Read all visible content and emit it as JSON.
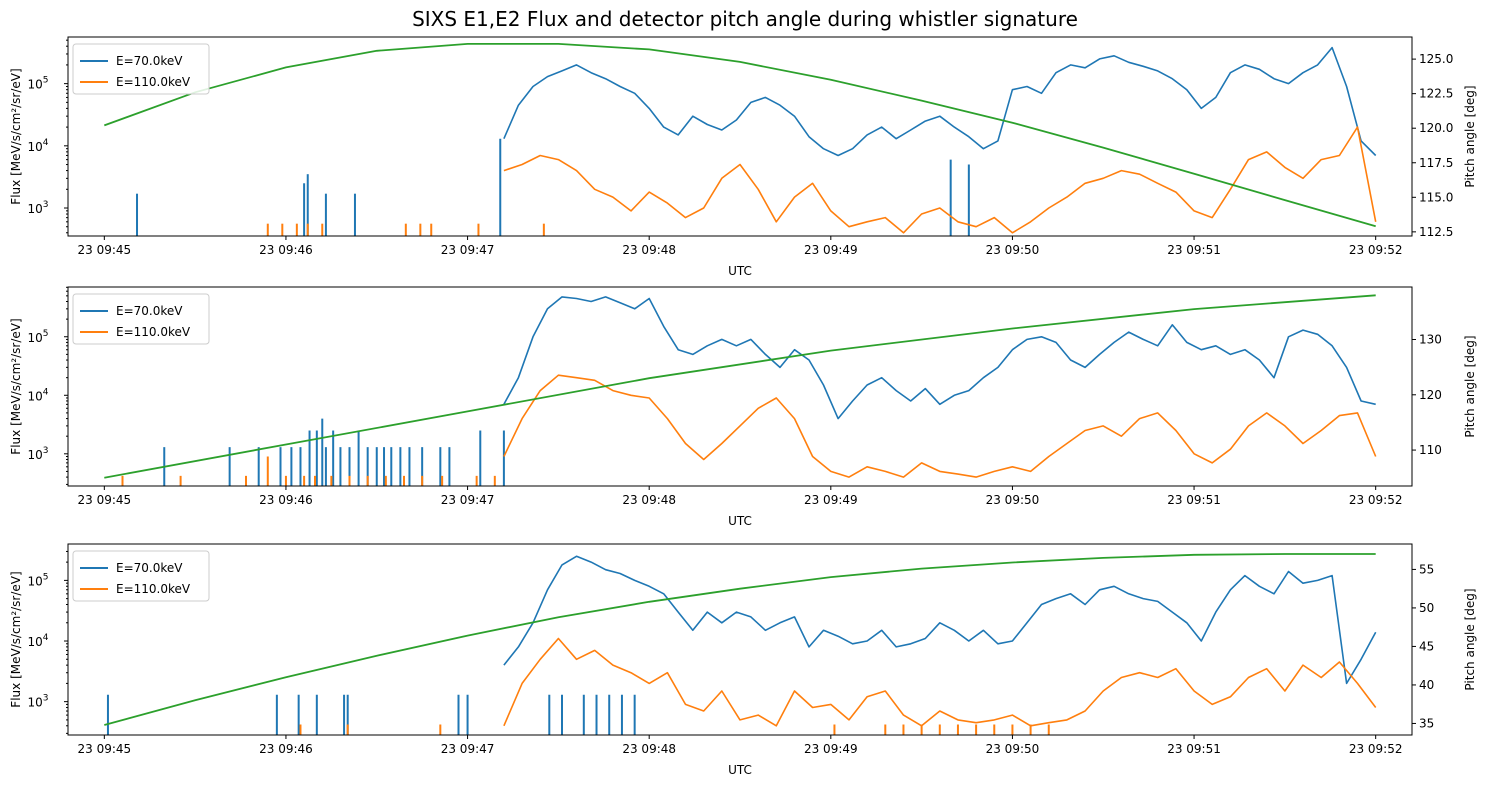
{
  "figure_title": "SIXS E1,E2 Flux and detector pitch angle during whistler signature",
  "colors": {
    "e70": "#1f77b4",
    "e110": "#ff7f0e",
    "pitch": "#2ca02c"
  },
  "chart_data": [
    {
      "type": "line",
      "panel": 1,
      "xlabel": "UTC",
      "ylabel": "Flux [MeV/s/cm²/sr/eV]",
      "ylabel_right": "Pitch angle [deg]",
      "yscale": "log",
      "x_ticks": [
        "23 09:45",
        "23 09:46",
        "23 09:47",
        "23 09:48",
        "23 09:49",
        "23 09:50",
        "23 09:51",
        "23 09:52"
      ],
      "y_tick_exponents": [
        3,
        4,
        5
      ],
      "y_right_ticks": [
        "112.5",
        "115.0",
        "117.5",
        "120.0",
        "122.5",
        "125.0"
      ],
      "xlim_min": [
        -0.2,
        7.2
      ],
      "ylim_log10": [
        2.55,
        5.75
      ],
      "y_right_lim": [
        112.2,
        126.6
      ],
      "legend": [
        "E=70.0keV",
        "E=110.0keV"
      ],
      "legend_loc": "upper left",
      "pitch_angle": {
        "t": [
          0,
          0.5,
          1,
          1.5,
          2,
          2.5,
          3,
          3.5,
          4,
          4.5,
          5,
          5.5,
          6,
          6.5,
          7
        ],
        "deg": [
          120.2,
          122.6,
          124.4,
          125.6,
          126.1,
          126.1,
          125.7,
          124.8,
          123.5,
          122.0,
          120.4,
          118.6,
          116.7,
          114.8,
          112.9
        ]
      },
      "series": [
        {
          "name": "E=70.0keV",
          "t": [
            2.2,
            2.28,
            2.36,
            2.44,
            2.52,
            2.6,
            2.68,
            2.76,
            2.84,
            2.92,
            3.0,
            3.08,
            3.16,
            3.24,
            3.32,
            3.4,
            3.48,
            3.56,
            3.64,
            3.72,
            3.8,
            3.88,
            3.96,
            4.04,
            4.12,
            4.2,
            4.28,
            4.36,
            4.44,
            4.52,
            4.6,
            4.68,
            4.76,
            4.84,
            4.92,
            5.0,
            5.08,
            5.16,
            5.24,
            5.32,
            5.4,
            5.48,
            5.56,
            5.64,
            5.72,
            5.8,
            5.88,
            5.96,
            6.04,
            6.12,
            6.2,
            6.28,
            6.36,
            6.44,
            6.52,
            6.6,
            6.68,
            6.76,
            6.84,
            6.92,
            7.0
          ],
          "flux": [
            13000,
            45000,
            90000,
            130000,
            160000,
            200000,
            150000,
            120000,
            90000,
            70000,
            40000,
            20000,
            15000,
            30000,
            22000,
            18000,
            26000,
            50000,
            60000,
            45000,
            30000,
            14000,
            9000,
            7000,
            9000,
            15000,
            20000,
            13000,
            18000,
            25000,
            30000,
            20000,
            14000,
            9000,
            12000,
            80000,
            90000,
            70000,
            150000,
            200000,
            180000,
            250000,
            280000,
            220000,
            190000,
            160000,
            120000,
            80000,
            40000,
            60000,
            150000,
            200000,
            170000,
            120000,
            100000,
            150000,
            200000,
            380000,
            90000,
            12000,
            7000
          ]
        },
        {
          "name": "E=110.0keV",
          "t": [
            2.2,
            2.3,
            2.4,
            2.5,
            2.6,
            2.7,
            2.8,
            2.9,
            3.0,
            3.1,
            3.2,
            3.3,
            3.4,
            3.5,
            3.6,
            3.7,
            3.8,
            3.9,
            4.0,
            4.1,
            4.2,
            4.3,
            4.4,
            4.5,
            4.6,
            4.7,
            4.8,
            4.9,
            5.0,
            5.1,
            5.2,
            5.3,
            5.4,
            5.5,
            5.6,
            5.7,
            5.8,
            5.9,
            6.0,
            6.1,
            6.2,
            6.3,
            6.4,
            6.5,
            6.6,
            6.7,
            6.8,
            6.9,
            7.0
          ],
          "flux": [
            4000,
            5000,
            7000,
            6000,
            4000,
            2000,
            1500,
            900,
            1800,
            1200,
            700,
            1000,
            3000,
            5000,
            2000,
            600,
            1500,
            2500,
            900,
            500,
            600,
            700,
            400,
            800,
            1000,
            600,
            500,
            700,
            400,
            600,
            1000,
            1500,
            2500,
            3000,
            4000,
            3500,
            2500,
            1800,
            900,
            700,
            2000,
            6000,
            8000,
            4500,
            3000,
            6000,
            7000,
            20000,
            600
          ]
        }
      ],
      "spikes_70keV": {
        "t": [
          0.18,
          1.1,
          1.12,
          1.22,
          1.38,
          2.18,
          4.66,
          4.76
        ],
        "flux": [
          1700,
          2500,
          3500,
          1700,
          1700,
          13000,
          6000,
          5000
        ]
      },
      "spikes_110keV": {
        "t": [
          0.9,
          0.98,
          1.06,
          1.12,
          1.2,
          1.66,
          1.74,
          1.8,
          2.06,
          2.42
        ],
        "flux": [
          560,
          560,
          560,
          560,
          560,
          560,
          560,
          560,
          560,
          560
        ]
      }
    },
    {
      "type": "line",
      "panel": 2,
      "xlabel": "UTC",
      "ylabel": "Flux [MeV/s/cm²/sr/eV]",
      "ylabel_right": "Pitch angle [deg]",
      "yscale": "log",
      "x_ticks": [
        "23 09:45",
        "23 09:46",
        "23 09:47",
        "23 09:48",
        "23 09:49",
        "23 09:50",
        "23 09:51",
        "23 09:52"
      ],
      "y_tick_exponents": [
        3,
        4,
        5
      ],
      "y_right_ticks": [
        "110",
        "120",
        "130"
      ],
      "xlim_min": [
        -0.2,
        7.2
      ],
      "ylim_log10": [
        2.45,
        5.85
      ],
      "y_right_lim": [
        103.5,
        139.5
      ],
      "legend": [
        "E=70.0keV",
        "E=110.0keV"
      ],
      "legend_loc": "upper left",
      "pitch_angle": {
        "t": [
          0,
          1,
          2,
          3,
          4,
          5,
          6,
          7
        ],
        "deg": [
          105,
          111,
          117,
          123,
          128,
          132,
          135.5,
          138
        ]
      },
      "series": [
        {
          "name": "E=70.0keV",
          "t": [
            2.2,
            2.28,
            2.36,
            2.44,
            2.52,
            2.6,
            2.68,
            2.76,
            2.84,
            2.92,
            3.0,
            3.08,
            3.16,
            3.24,
            3.32,
            3.4,
            3.48,
            3.56,
            3.64,
            3.72,
            3.8,
            3.88,
            3.96,
            4.04,
            4.12,
            4.2,
            4.28,
            4.36,
            4.44,
            4.52,
            4.6,
            4.68,
            4.76,
            4.84,
            4.92,
            5.0,
            5.08,
            5.16,
            5.24,
            5.32,
            5.4,
            5.48,
            5.56,
            5.64,
            5.72,
            5.8,
            5.88,
            5.96,
            6.04,
            6.12,
            6.2,
            6.28,
            6.36,
            6.44,
            6.52,
            6.6,
            6.68,
            6.76,
            6.84,
            6.92,
            7.0
          ],
          "flux": [
            7000,
            20000,
            100000,
            300000,
            480000,
            450000,
            400000,
            480000,
            380000,
            300000,
            450000,
            150000,
            60000,
            50000,
            70000,
            90000,
            70000,
            90000,
            50000,
            30000,
            60000,
            40000,
            15000,
            4000,
            8000,
            15000,
            20000,
            12000,
            8000,
            13000,
            7000,
            10000,
            12000,
            20000,
            30000,
            60000,
            90000,
            100000,
            80000,
            40000,
            30000,
            50000,
            80000,
            120000,
            90000,
            70000,
            160000,
            80000,
            60000,
            70000,
            50000,
            60000,
            40000,
            20000,
            100000,
            130000,
            110000,
            70000,
            30000,
            8000,
            7000
          ]
        },
        {
          "name": "E=110.0keV",
          "t": [
            2.2,
            2.3,
            2.4,
            2.5,
            2.6,
            2.7,
            2.8,
            2.9,
            3.0,
            3.1,
            3.2,
            3.3,
            3.4,
            3.5,
            3.6,
            3.7,
            3.8,
            3.9,
            4.0,
            4.1,
            4.2,
            4.3,
            4.4,
            4.5,
            4.6,
            4.7,
            4.8,
            4.9,
            5.0,
            5.1,
            5.2,
            5.3,
            5.4,
            5.5,
            5.6,
            5.7,
            5.8,
            5.9,
            6.0,
            6.1,
            6.2,
            6.3,
            6.4,
            6.5,
            6.6,
            6.7,
            6.8,
            6.9,
            7.0
          ],
          "flux": [
            900,
            4000,
            12000,
            22000,
            20000,
            18000,
            12000,
            10000,
            9000,
            4000,
            1500,
            800,
            1500,
            3000,
            6000,
            9000,
            4000,
            900,
            500,
            400,
            600,
            500,
            400,
            700,
            500,
            450,
            400,
            500,
            600,
            500,
            900,
            1500,
            2500,
            3000,
            2000,
            4000,
            5000,
            2500,
            1000,
            700,
            1200,
            3000,
            5000,
            3000,
            1500,
            2500,
            4500,
            5000,
            900
          ]
        }
      ],
      "spikes_70keV": {
        "t": [
          0.33,
          0.69,
          0.85,
          0.97,
          1.03,
          1.08,
          1.13,
          1.17,
          1.2,
          1.22,
          1.26,
          1.3,
          1.35,
          1.4,
          1.45,
          1.5,
          1.54,
          1.58,
          1.63,
          1.68,
          1.75,
          1.85,
          1.9,
          2.07,
          2.2
        ],
        "flux": [
          1300,
          1300,
          1300,
          1300,
          1300,
          1300,
          2500,
          2500,
          4000,
          1300,
          2500,
          1300,
          1300,
          2500,
          1300,
          1300,
          1300,
          1300,
          1300,
          1300,
          1300,
          1300,
          1300,
          2500,
          2500
        ]
      },
      "spikes_110keV": {
        "t": [
          0.1,
          0.42,
          0.78,
          0.9,
          1.0,
          1.1,
          1.16,
          1.25,
          1.35,
          1.45,
          1.55,
          1.65,
          1.75,
          1.86,
          2.05,
          2.15
        ],
        "flux": [
          420,
          420,
          420,
          900,
          420,
          420,
          420,
          420,
          420,
          420,
          420,
          420,
          420,
          420,
          420,
          420
        ]
      }
    },
    {
      "type": "line",
      "panel": 3,
      "xlabel": "UTC",
      "ylabel": "Flux [MeV/s/cm²/sr/eV]",
      "ylabel_right": "Pitch angle [deg]",
      "yscale": "log",
      "x_ticks": [
        "23 09:45",
        "23 09:46",
        "23 09:47",
        "23 09:48",
        "23 09:49",
        "23 09:50",
        "23 09:51",
        "23 09:52"
      ],
      "y_tick_exponents": [
        3,
        4,
        5
      ],
      "y_right_ticks": [
        "35",
        "40",
        "45",
        "50",
        "55"
      ],
      "xlim_min": [
        -0.2,
        7.2
      ],
      "ylim_log10": [
        2.45,
        5.6
      ],
      "y_right_lim": [
        33.5,
        58.3
      ],
      "legend": [
        "E=70.0keV",
        "E=110.0keV"
      ],
      "legend_loc": "upper left",
      "pitch_angle": {
        "t": [
          0,
          0.5,
          1,
          1.5,
          2,
          2.5,
          3,
          3.5,
          4,
          4.5,
          5,
          5.5,
          6,
          6.5,
          7
        ],
        "deg": [
          34.8,
          38.0,
          41.0,
          43.8,
          46.4,
          48.8,
          50.8,
          52.5,
          54.0,
          55.1,
          55.9,
          56.5,
          56.9,
          57.0,
          57.0
        ]
      },
      "series": [
        {
          "name": "E=70.0keV",
          "t": [
            2.2,
            2.28,
            2.36,
            2.44,
            2.52,
            2.6,
            2.68,
            2.76,
            2.84,
            2.92,
            3.0,
            3.08,
            3.16,
            3.24,
            3.32,
            3.4,
            3.48,
            3.56,
            3.64,
            3.72,
            3.8,
            3.88,
            3.96,
            4.04,
            4.12,
            4.2,
            4.28,
            4.36,
            4.44,
            4.52,
            4.6,
            4.68,
            4.76,
            4.84,
            4.92,
            5.0,
            5.08,
            5.16,
            5.24,
            5.32,
            5.4,
            5.48,
            5.56,
            5.64,
            5.72,
            5.8,
            5.88,
            5.96,
            6.04,
            6.12,
            6.2,
            6.28,
            6.36,
            6.44,
            6.52,
            6.6,
            6.68,
            6.76,
            6.84,
            6.92,
            7.0
          ],
          "flux": [
            4000,
            8000,
            20000,
            70000,
            180000,
            250000,
            200000,
            150000,
            130000,
            100000,
            80000,
            60000,
            30000,
            15000,
            30000,
            20000,
            30000,
            25000,
            15000,
            20000,
            25000,
            8000,
            15000,
            12000,
            9000,
            10000,
            15000,
            8000,
            9000,
            11000,
            20000,
            15000,
            10000,
            15000,
            9000,
            10000,
            20000,
            40000,
            50000,
            60000,
            40000,
            70000,
            80000,
            60000,
            50000,
            45000,
            30000,
            20000,
            10000,
            30000,
            70000,
            120000,
            80000,
            60000,
            140000,
            90000,
            100000,
            120000,
            2000,
            5000,
            14000
          ]
        },
        {
          "name": "E=110.0keV",
          "t": [
            2.2,
            2.3,
            2.4,
            2.5,
            2.6,
            2.7,
            2.8,
            2.9,
            3.0,
            3.1,
            3.2,
            3.3,
            3.4,
            3.5,
            3.6,
            3.7,
            3.8,
            3.9,
            4.0,
            4.1,
            4.2,
            4.3,
            4.4,
            4.5,
            4.6,
            4.7,
            4.8,
            4.9,
            5.0,
            5.1,
            5.2,
            5.3,
            5.4,
            5.5,
            5.6,
            5.7,
            5.8,
            5.9,
            6.0,
            6.1,
            6.2,
            6.3,
            6.4,
            6.5,
            6.6,
            6.7,
            6.8,
            6.9,
            7.0
          ],
          "flux": [
            400,
            2000,
            5000,
            11000,
            5000,
            7000,
            4000,
            3000,
            2000,
            3000,
            900,
            700,
            1500,
            500,
            600,
            400,
            1500,
            800,
            900,
            500,
            1200,
            1500,
            600,
            400,
            700,
            500,
            450,
            500,
            600,
            400,
            450,
            500,
            700,
            1500,
            2500,
            3000,
            2500,
            3500,
            1500,
            900,
            1200,
            2500,
            3500,
            1500,
            4000,
            2500,
            4500,
            2000,
            800
          ]
        }
      ],
      "spikes_70keV": {
        "t": [
          0.02,
          0.95,
          1.07,
          1.17,
          1.32,
          1.34,
          1.95,
          2.0,
          2.45,
          2.52,
          2.64,
          2.71,
          2.78,
          2.85,
          2.92
        ],
        "flux": [
          1300,
          1300,
          1300,
          1300,
          1300,
          1300,
          1300,
          1300,
          1300,
          1300,
          1300,
          1300,
          1300,
          1300,
          1300
        ]
      },
      "spikes_110keV": {
        "t": [
          1.08,
          1.34,
          1.85,
          4.02,
          4.3,
          4.4,
          4.5,
          4.6,
          4.7,
          4.8,
          4.9,
          5.0,
          5.1,
          5.2
        ],
        "flux": [
          420,
          420,
          420,
          420,
          420,
          420,
          420,
          420,
          420,
          420,
          420,
          420,
          420,
          420
        ]
      }
    }
  ]
}
